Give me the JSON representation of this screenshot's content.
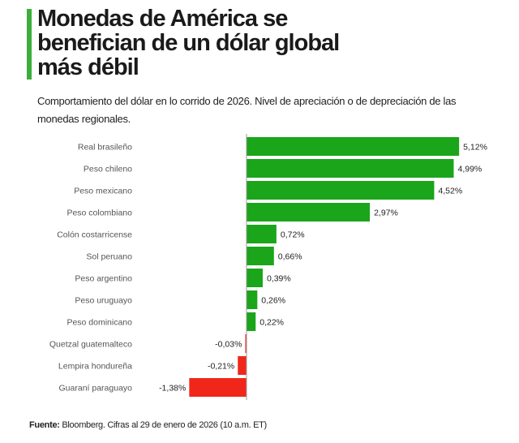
{
  "title": "Monedas de América se benefician de un dólar global más débil",
  "subtitle": "Comportamiento del dólar en lo corrido de 2026. Nivel de apreciación o de depreciación de las monedas regionales.",
  "footnote": {
    "label": "Fuente:",
    "text": " Bloomberg. Cifras al 29 de enero de 2026 (10 a.m. ET)"
  },
  "colors": {
    "positive": "#1aa51a",
    "negative": "#f0261b",
    "accent": "#3cae3a"
  },
  "chart_data": {
    "type": "bar",
    "orientation": "horizontal",
    "categories": [
      "Real brasileño",
      "Peso chileno",
      "Peso mexicano",
      "Peso colombiano",
      "Colón costarricense",
      "Sol peruano",
      "Peso argentino",
      "Peso uruguayo",
      "Peso dominicano",
      "Quetzal guatemalteco",
      "Lempira hondureña",
      "Guaraní paraguayo"
    ],
    "values": [
      5.12,
      4.99,
      4.52,
      2.97,
      0.72,
      0.66,
      0.39,
      0.26,
      0.22,
      -0.03,
      -0.21,
      -1.38
    ],
    "data_labels": [
      "5,12%",
      "4,99%",
      "4,52%",
      "2,97%",
      "0,72%",
      "0,66%",
      "0,39%",
      "0,26%",
      "0,22%",
      "-0,03%",
      "-0,21%",
      "-1,38%"
    ],
    "unit": "%",
    "grid": false,
    "legend": "none"
  }
}
